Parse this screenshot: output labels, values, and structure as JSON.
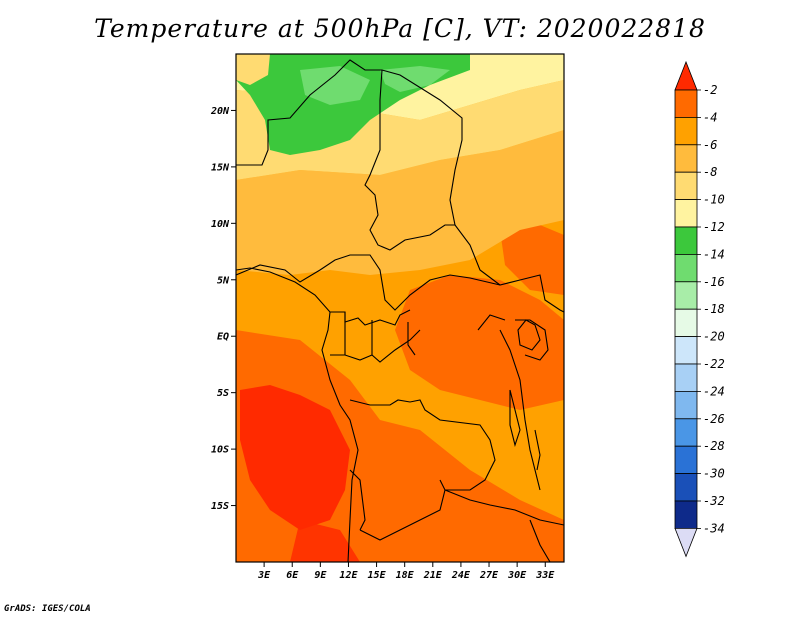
{
  "title": "Temperature at 500hPa [C], VT: 2020022818",
  "credit": "GrADS: IGES/COLA",
  "map": {
    "lat_labels": [
      "20N",
      "15N",
      "10N",
      "5N",
      "EQ",
      "5S",
      "10S",
      "15S"
    ],
    "lat_values": [
      20,
      15,
      10,
      5,
      0,
      -5,
      -10,
      -15
    ],
    "lon_labels": [
      "3E",
      "6E",
      "9E",
      "12E",
      "15E",
      "18E",
      "21E",
      "24E",
      "27E",
      "30E",
      "33E"
    ],
    "lon_values": [
      3,
      6,
      9,
      12,
      15,
      18,
      21,
      24,
      27,
      30,
      33
    ],
    "lon_range": [
      0,
      35
    ],
    "lat_range": [
      -20,
      25
    ]
  },
  "colorbar": {
    "labels": [
      "-2",
      "-4",
      "-6",
      "-8",
      "-10",
      "-12",
      "-14",
      "-16",
      "-18",
      "-20",
      "-22",
      "-24",
      "-26",
      "-28",
      "-30",
      "-32",
      "-34"
    ],
    "colors": [
      "#ff2a00",
      "#ff6a00",
      "#ffa100",
      "#ffbb3d",
      "#ffdb72",
      "#fff3a0",
      "#3cc83c",
      "#6fdc6f",
      "#a8eda8",
      "#e6fae6",
      "#cde6fa",
      "#a8d0f5",
      "#7fb8ef",
      "#4a96e6",
      "#2a72d6",
      "#1a50b8",
      "#0e2a8a",
      "#06106a"
    ]
  }
}
